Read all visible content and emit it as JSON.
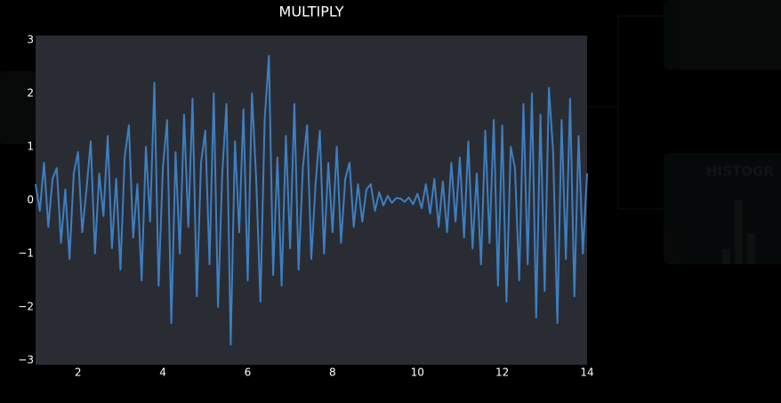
{
  "chart_data": {
    "type": "line",
    "title": "MULTIPLY",
    "x": [
      1,
      1.1,
      1.2,
      1.3,
      1.4,
      1.5,
      1.6,
      1.7,
      1.8,
      1.9,
      2,
      2.1,
      2.2,
      2.3,
      2.4,
      2.5,
      2.6,
      2.7,
      2.8,
      2.9,
      3,
      3.1,
      3.2,
      3.3,
      3.4,
      3.5,
      3.6,
      3.7,
      3.8,
      3.9,
      4,
      4.1,
      4.2,
      4.3,
      4.4,
      4.5,
      4.6,
      4.7,
      4.8,
      4.9,
      5,
      5.1,
      5.2,
      5.3,
      5.4,
      5.5,
      5.6,
      5.7,
      5.8,
      5.9,
      6,
      6.1,
      6.2,
      6.3,
      6.4,
      6.5,
      6.6,
      6.7,
      6.8,
      6.9,
      7,
      7.1,
      7.2,
      7.3,
      7.4,
      7.5,
      7.6,
      7.7,
      7.8,
      7.9,
      8,
      8.1,
      8.2,
      8.3,
      8.4,
      8.5,
      8.6,
      8.7,
      8.8,
      8.9,
      9,
      9.1,
      9.2,
      9.3,
      9.4,
      9.5,
      9.6,
      9.7,
      9.8,
      9.9,
      10,
      10.1,
      10.2,
      10.3,
      10.4,
      10.5,
      10.6,
      10.7,
      10.8,
      10.9,
      11,
      11.1,
      11.2,
      11.3,
      11.4,
      11.5,
      11.6,
      11.7,
      11.8,
      11.9,
      12,
      12.1,
      12.2,
      12.3,
      12.4,
      12.5,
      12.6,
      12.7,
      12.8,
      12.9,
      13,
      13.1,
      13.2,
      13.3,
      13.4,
      13.5,
      13.6,
      13.7,
      13.8,
      13.9,
      14
    ],
    "series": [
      {
        "color": "#3d7fc1",
        "values": [
          0.3,
          -0.2,
          0.7,
          -0.5,
          0.4,
          0.6,
          -0.8,
          0.2,
          -1.1,
          0.5,
          0.9,
          -0.6,
          0.2,
          1.1,
          -1.0,
          0.5,
          -0.3,
          1.2,
          -0.9,
          0.4,
          -1.3,
          0.8,
          1.4,
          -0.7,
          0.3,
          -1.5,
          1.0,
          -0.4,
          2.2,
          -1.6,
          0.6,
          1.5,
          -2.3,
          0.9,
          -1.0,
          1.6,
          -0.5,
          1.9,
          -1.8,
          0.7,
          1.3,
          -1.2,
          2.0,
          -2.0,
          0.5,
          1.8,
          -2.7,
          1.1,
          -0.6,
          1.7,
          -1.5,
          2.0,
          0.4,
          -1.9,
          1.5,
          2.7,
          -1.4,
          0.8,
          -1.6,
          1.2,
          -0.9,
          1.8,
          -1.3,
          0.6,
          1.4,
          -1.1,
          0.3,
          1.3,
          -1.0,
          0.7,
          -0.6,
          1.0,
          -0.8,
          0.4,
          0.7,
          -0.5,
          0.3,
          -0.4,
          0.2,
          0.3,
          -0.2,
          0.15,
          -0.1,
          0.08,
          -0.05,
          0.04,
          0.03,
          -0.03,
          0.05,
          -0.08,
          0.12,
          -0.15,
          0.3,
          -0.25,
          0.4,
          -0.5,
          0.35,
          -0.6,
          0.7,
          -0.4,
          0.8,
          -0.7,
          1.1,
          -0.9,
          0.5,
          -1.2,
          1.3,
          -0.8,
          1.5,
          -1.6,
          1.4,
          -1.9,
          1.0,
          0.6,
          -1.5,
          1.8,
          -1.2,
          2.0,
          -2.2,
          1.6,
          -1.7,
          2.1,
          0.9,
          -2.3,
          1.5,
          -1.1,
          1.9,
          -1.8,
          1.2,
          -1.0,
          0.5
        ]
      }
    ],
    "xlim": [
      1,
      14
    ],
    "ylim": [
      -3.08,
      3.08
    ],
    "xticks": [
      2,
      4,
      6,
      8,
      10,
      12,
      14
    ],
    "yticks": [
      {
        "value": -3,
        "label": "−3"
      },
      {
        "value": -2,
        "label": "−2"
      },
      {
        "value": -1,
        "label": "−1"
      },
      0,
      1,
      2,
      3
    ],
    "grid": false
  },
  "background": {
    "node_label": "HISTOGR"
  }
}
